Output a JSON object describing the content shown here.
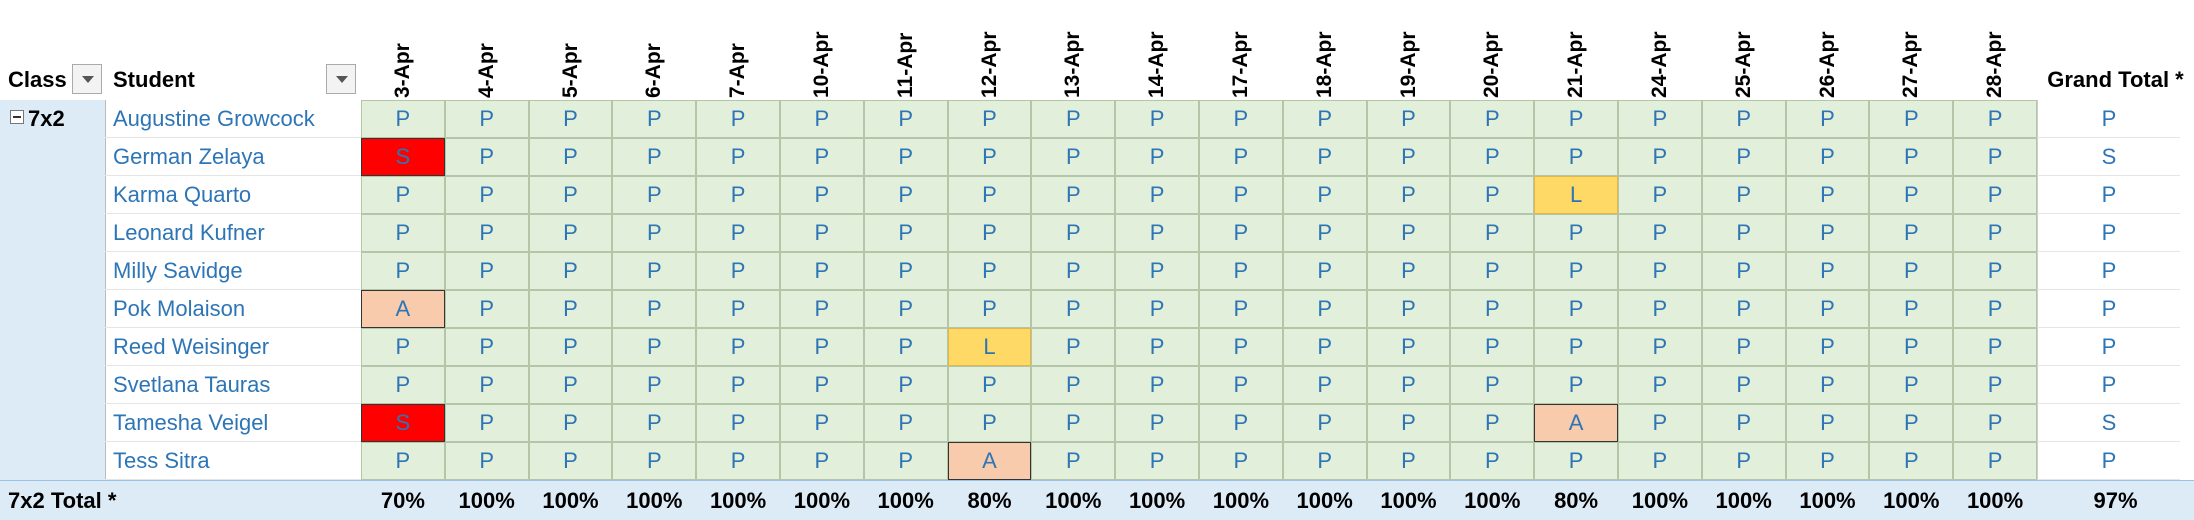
{
  "header": {
    "class_label": "Class",
    "student_label": "Student",
    "dates": [
      "3-Apr",
      "4-Apr",
      "5-Apr",
      "6-Apr",
      "7-Apr",
      "10-Apr",
      "11-Apr",
      "12-Apr",
      "13-Apr",
      "14-Apr",
      "17-Apr",
      "18-Apr",
      "19-Apr",
      "20-Apr",
      "21-Apr",
      "24-Apr",
      "25-Apr",
      "26-Apr",
      "27-Apr",
      "28-Apr"
    ],
    "grand_total_label": "Grand Total *"
  },
  "class": "7x2",
  "rows": [
    {
      "student": "Augustine Growcock",
      "cells": [
        "P",
        "P",
        "P",
        "P",
        "P",
        "P",
        "P",
        "P",
        "P",
        "P",
        "P",
        "P",
        "P",
        "P",
        "P",
        "P",
        "P",
        "P",
        "P",
        "P"
      ],
      "grand_total": "P"
    },
    {
      "student": "German Zelaya",
      "cells": [
        "S",
        "P",
        "P",
        "P",
        "P",
        "P",
        "P",
        "P",
        "P",
        "P",
        "P",
        "P",
        "P",
        "P",
        "P",
        "P",
        "P",
        "P",
        "P",
        "P"
      ],
      "grand_total": "S"
    },
    {
      "student": "Karma Quarto",
      "cells": [
        "P",
        "P",
        "P",
        "P",
        "P",
        "P",
        "P",
        "P",
        "P",
        "P",
        "P",
        "P",
        "P",
        "P",
        "L",
        "P",
        "P",
        "P",
        "P",
        "P"
      ],
      "grand_total": "P"
    },
    {
      "student": "Leonard Kufner",
      "cells": [
        "P",
        "P",
        "P",
        "P",
        "P",
        "P",
        "P",
        "P",
        "P",
        "P",
        "P",
        "P",
        "P",
        "P",
        "P",
        "P",
        "P",
        "P",
        "P",
        "P"
      ],
      "grand_total": "P"
    },
    {
      "student": "Milly Savidge",
      "cells": [
        "P",
        "P",
        "P",
        "P",
        "P",
        "P",
        "P",
        "P",
        "P",
        "P",
        "P",
        "P",
        "P",
        "P",
        "P",
        "P",
        "P",
        "P",
        "P",
        "P"
      ],
      "grand_total": "P"
    },
    {
      "student": "Pok Molaison",
      "cells": [
        "A",
        "P",
        "P",
        "P",
        "P",
        "P",
        "P",
        "P",
        "P",
        "P",
        "P",
        "P",
        "P",
        "P",
        "P",
        "P",
        "P",
        "P",
        "P",
        "P"
      ],
      "grand_total": "P"
    },
    {
      "student": "Reed Weisinger",
      "cells": [
        "P",
        "P",
        "P",
        "P",
        "P",
        "P",
        "P",
        "L",
        "P",
        "P",
        "P",
        "P",
        "P",
        "P",
        "P",
        "P",
        "P",
        "P",
        "P",
        "P"
      ],
      "grand_total": "P"
    },
    {
      "student": "Svetlana Tauras",
      "cells": [
        "P",
        "P",
        "P",
        "P",
        "P",
        "P",
        "P",
        "P",
        "P",
        "P",
        "P",
        "P",
        "P",
        "P",
        "P",
        "P",
        "P",
        "P",
        "P",
        "P"
      ],
      "grand_total": "P"
    },
    {
      "student": "Tamesha Veigel",
      "cells": [
        "S",
        "P",
        "P",
        "P",
        "P",
        "P",
        "P",
        "P",
        "P",
        "P",
        "P",
        "P",
        "P",
        "P",
        "A",
        "P",
        "P",
        "P",
        "P",
        "P"
      ],
      "grand_total": "S"
    },
    {
      "student": "Tess Sitra",
      "cells": [
        "P",
        "P",
        "P",
        "P",
        "P",
        "P",
        "P",
        "A",
        "P",
        "P",
        "P",
        "P",
        "P",
        "P",
        "P",
        "P",
        "P",
        "P",
        "P",
        "P"
      ],
      "grand_total": "P"
    }
  ],
  "total": {
    "label": "7x2 Total *",
    "values": [
      "70%",
      "100%",
      "100%",
      "100%",
      "100%",
      "100%",
      "100%",
      "80%",
      "100%",
      "100%",
      "100%",
      "100%",
      "100%",
      "100%",
      "80%",
      "100%",
      "100%",
      "100%",
      "100%",
      "100%"
    ],
    "grand_total": "97%"
  }
}
